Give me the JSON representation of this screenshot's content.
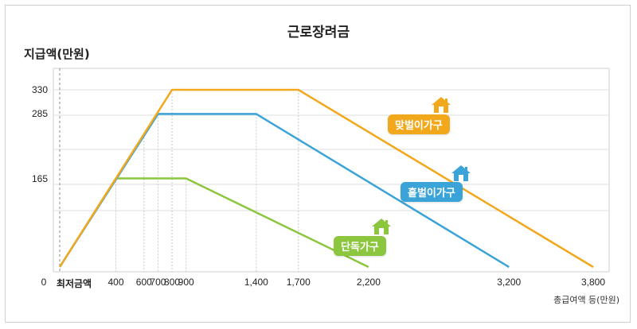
{
  "chart_data": {
    "type": "line",
    "title": "근로장려금",
    "ylabel": "지급액(만원)",
    "xlabel": "총급여액 등(만원)",
    "x_origin_label": "0",
    "x_min_label": "최저금액",
    "xticks": [
      400,
      600,
      700,
      800,
      900,
      1400,
      1700,
      2200,
      3200,
      3800
    ],
    "xtick_labels": [
      "400",
      "600",
      "700",
      "800",
      "900",
      "1,400",
      "1,700",
      "2,200",
      "3,200",
      "3,800"
    ],
    "yticks": [
      165,
      285,
      330
    ],
    "yticks_labels": [
      "165",
      "285",
      "330"
    ],
    "ylim": [
      0,
      330
    ],
    "series": [
      {
        "name": "맞벌이가구",
        "color": "#f2a81d",
        "x": [
          0,
          800,
          1700,
          3800
        ],
        "y": [
          0,
          330,
          330,
          0
        ]
      },
      {
        "name": "홑벌이가구",
        "color": "#3aa3d8",
        "x": [
          0,
          700,
          1400,
          3200
        ],
        "y": [
          0,
          285,
          285,
          0
        ]
      },
      {
        "name": "단독가구",
        "color": "#8cc63f",
        "x": [
          0,
          400,
          900,
          2200
        ],
        "y": [
          0,
          165,
          165,
          0
        ]
      }
    ]
  }
}
